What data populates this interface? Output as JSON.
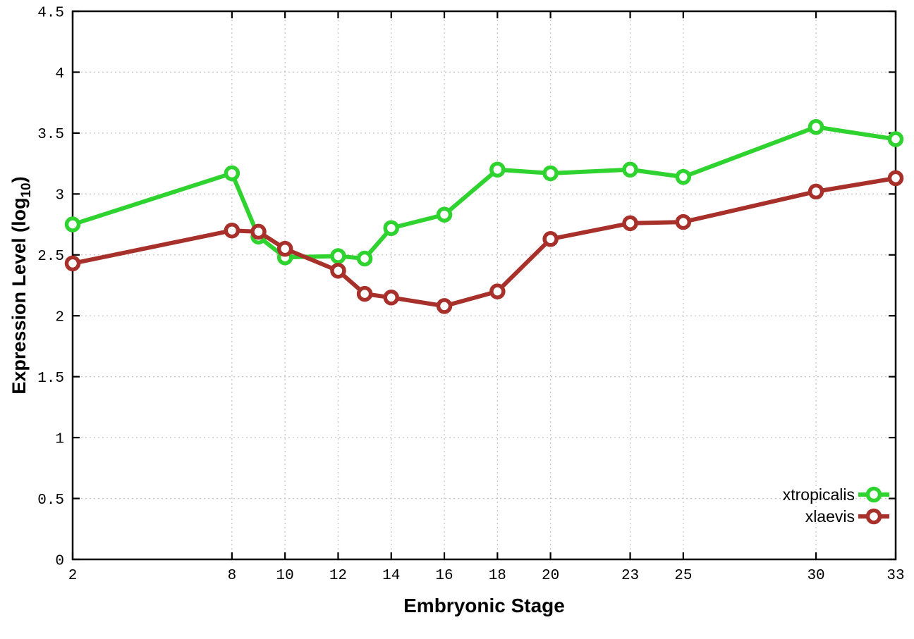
{
  "chart_data": {
    "type": "line",
    "title": "",
    "xlabel": "Embryonic Stage",
    "ylabel": "Expression Level (log10)",
    "ylabel_parts": {
      "main": "Expression Level (log",
      "sub": "10",
      "close": ")"
    },
    "xlim": [
      2,
      33
    ],
    "ylim": [
      0,
      4.5
    ],
    "grid": true,
    "legend_position": "bottom-right",
    "x": [
      2,
      8,
      9,
      10,
      12,
      13,
      14,
      16,
      18,
      20,
      23,
      25,
      30,
      33
    ],
    "xticks": [
      2,
      8,
      10,
      12,
      14,
      16,
      18,
      20,
      23,
      25,
      30,
      33
    ],
    "xtick_labels": [
      "2",
      "8",
      "10",
      "12",
      "14",
      "16",
      "18",
      "20",
      "23",
      "25",
      "30",
      "33"
    ],
    "yticks": [
      0,
      0.5,
      1,
      1.5,
      2,
      2.5,
      3,
      3.5,
      4,
      4.5
    ],
    "ytick_labels": [
      "0",
      "0.5",
      "1",
      "1.5",
      "2",
      "2.5",
      "3",
      "3.5",
      "4",
      "4.5"
    ],
    "series": [
      {
        "name": "xtropicalis",
        "color": "#2fd32f",
        "values": [
          2.75,
          3.17,
          2.65,
          2.48,
          2.49,
          2.47,
          2.72,
          2.83,
          3.2,
          3.17,
          3.2,
          3.14,
          3.55,
          3.45
        ]
      },
      {
        "name": "xlaevis",
        "color": "#a8302a",
        "values": [
          2.43,
          2.7,
          2.69,
          2.55,
          2.37,
          2.18,
          2.15,
          2.08,
          2.2,
          2.63,
          2.76,
          2.77,
          3.02,
          3.13
        ]
      }
    ],
    "colors": {
      "background": "#ffffff",
      "border": "#000000",
      "grid": "#c6c6c6",
      "tick": "#000000",
      "marker_fill": "#ffffff"
    }
  }
}
